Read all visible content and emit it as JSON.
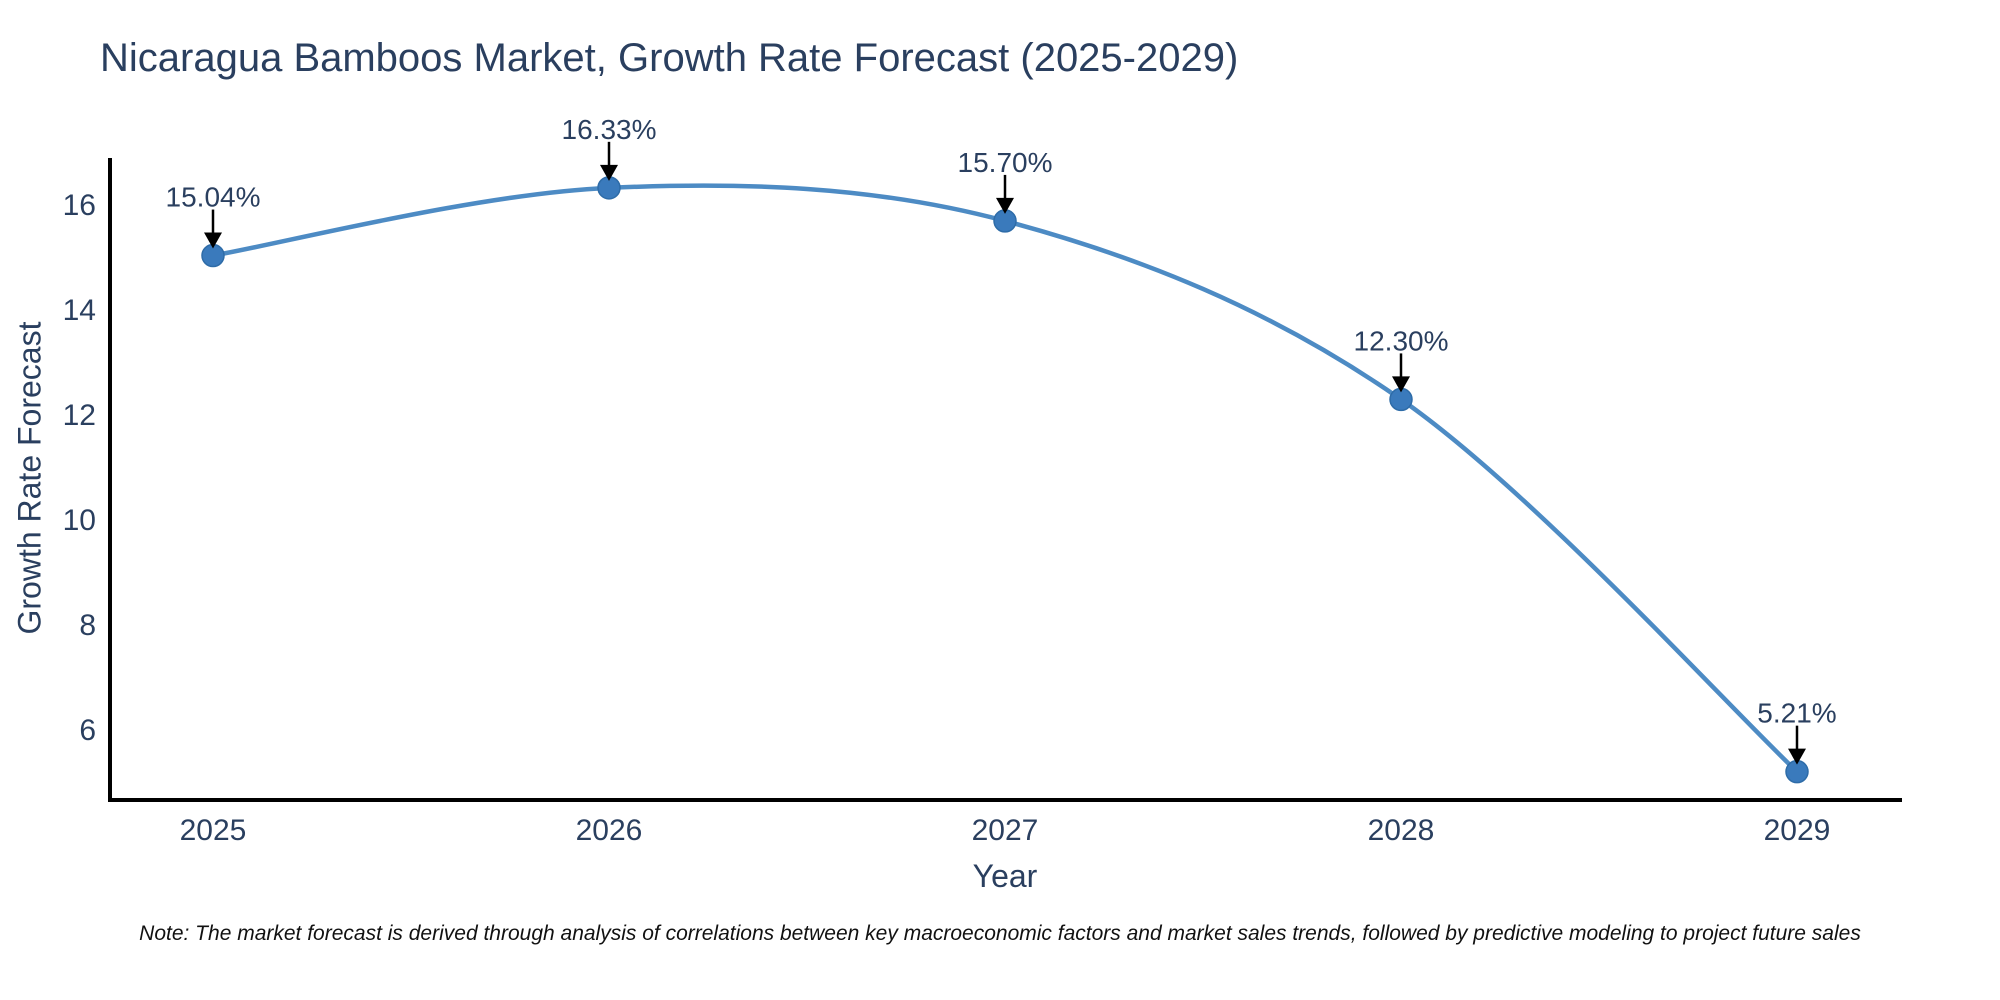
{
  "chart_data": {
    "type": "line",
    "title": "Nicaragua Bamboos Market, Growth Rate Forecast (2025-2029)",
    "xlabel": "Year",
    "ylabel": "Growth Rate Forecast",
    "categories": [
      "2025",
      "2026",
      "2027",
      "2028",
      "2029"
    ],
    "values": [
      15.04,
      16.33,
      15.7,
      12.3,
      5.21
    ],
    "point_labels": [
      "15.04%",
      "16.33%",
      "15.70%",
      "12.30%",
      "5.21%"
    ],
    "yticks": [
      6,
      8,
      10,
      12,
      14,
      16
    ],
    "ylim": [
      4.67,
      16.86
    ],
    "line_shape": "spline",
    "grid": false,
    "legend": "none",
    "colors": {
      "line": "#4d8bc4",
      "marker_fill": "#3a7abc",
      "marker_edge": "#2e6ca8",
      "axis": "#000000",
      "annotation_arrow": "#000000",
      "text": "#2a3f5f"
    },
    "note": "Note: The market forecast is derived through analysis of correlations between key macroeconomic factors and market sales trends, followed by predictive modeling to project future sales"
  }
}
